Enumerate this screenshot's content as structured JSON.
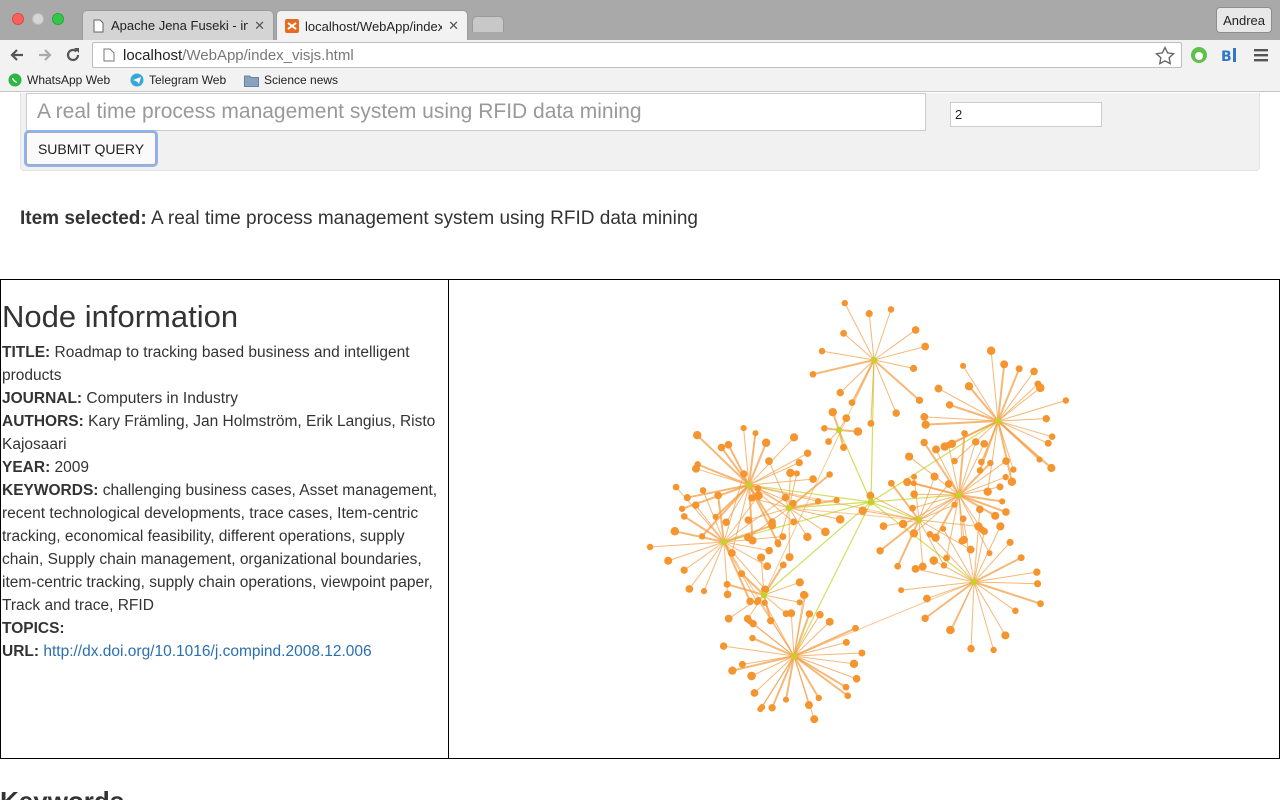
{
  "browser": {
    "tabs": [
      {
        "title": "Apache Jena Fuseki - insp"
      },
      {
        "title": "localhost/WebApp/index_v"
      }
    ],
    "user": "Andrea",
    "url": {
      "host": "localhost",
      "path": "/WebApp/index_visjs.html"
    },
    "bookmarks": [
      {
        "label": "WhatsApp Web"
      },
      {
        "label": "Telegram Web"
      },
      {
        "label": "Science news"
      }
    ]
  },
  "query": {
    "placeholder": "A real time process management system using RFID data mining",
    "depth_value": "2",
    "submit_label": "SUBMIT QUERY"
  },
  "selection": {
    "label": "Item selected:",
    "value": "A real time process management system using RFID data mining"
  },
  "node": {
    "heading": "Node information",
    "title_label": "TITLE:",
    "title": "Roadmap to tracking based business and intelligent products",
    "journal_label": "JOURNAL:",
    "journal": "Computers in Industry",
    "authors_label": "AUTHORS:",
    "authors": "Kary Främling, Jan Holmström, Erik Langius, Risto Kajosaari",
    "year_label": "YEAR:",
    "year": "2009",
    "keywords_label": "KEYWORDS:",
    "keywords": "challenging business cases, Asset management, recent technological developments, trace cases, Item-centric tracking, economical feasibility, different operations, supply chain, Supply chain management, organizational boundaries, item-centric tracking, supply chain operations, viewpoint paper, Track and trace, RFID",
    "topics_label": "TOPICS:",
    "topics": "",
    "url_label": "URL:",
    "url": "http://dx.doi.org/10.1016/j.compind.2008.12.006"
  },
  "graph": {
    "colors": {
      "node": "#f4952f",
      "edge": "#f29a3c",
      "hub": "#c6d12a",
      "core_edge": "#c9d634"
    }
  },
  "section": {
    "keywords_heading": "Keywords"
  }
}
